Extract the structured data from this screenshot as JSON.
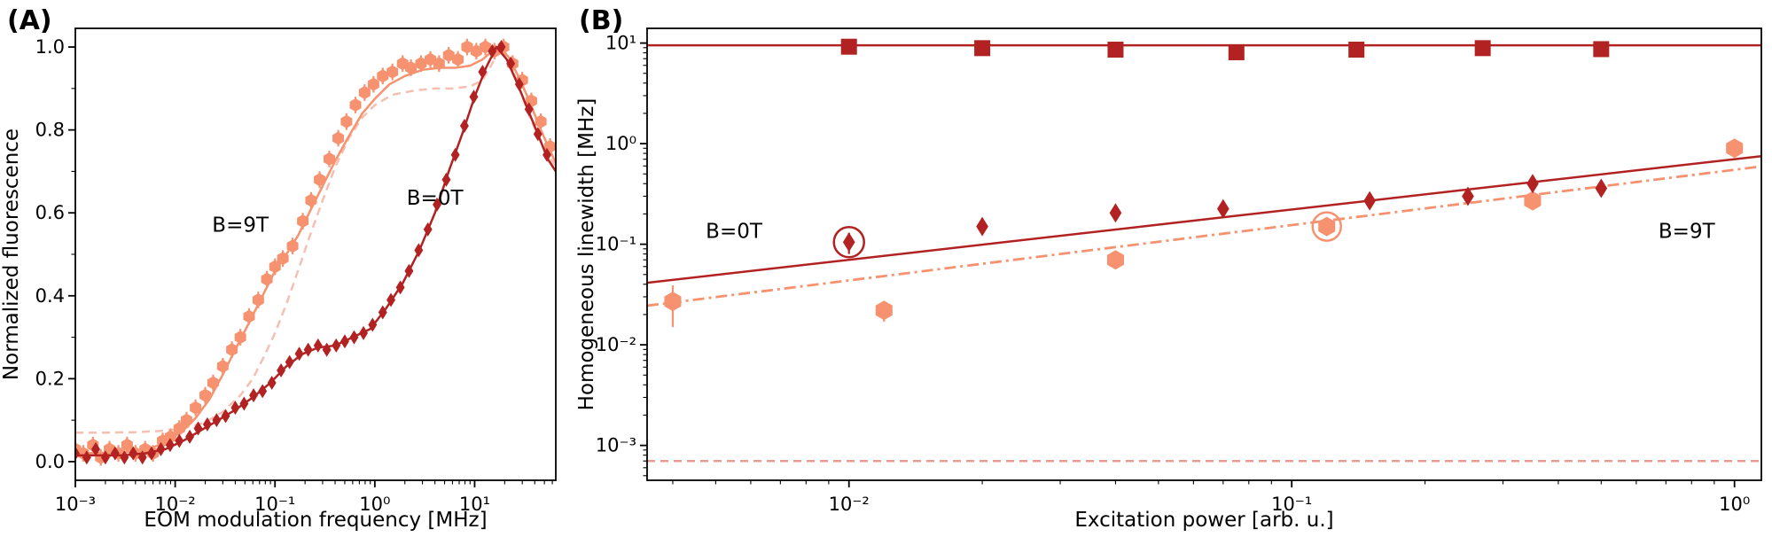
{
  "figure": {
    "panels": [
      {
        "label": "(A)"
      },
      {
        "label": "(B)"
      }
    ]
  },
  "colors": {
    "dark_red": "#B22222",
    "salmon": "#F6926F",
    "light_pink": "#F5BFB2",
    "floor_pink": "#E59C93"
  },
  "chart_data": [
    {
      "id": "panel-a",
      "type": "line",
      "xlabel": "EOM modulation frequency [MHz]",
      "ylabel": "Normalized fluorescence",
      "xscale": "log",
      "yscale": "linear",
      "xlim": [
        0.001,
        65
      ],
      "ylim": [
        -0.045,
        1.045
      ],
      "yticks": [
        0.0,
        0.2,
        0.4,
        0.6,
        0.8,
        1.0
      ],
      "yticks_minor": [
        0.1,
        0.3,
        0.5,
        0.7,
        0.9
      ],
      "annotations": [
        {
          "text": "B=9T",
          "x": 0.045,
          "y": 0.555,
          "color": "#F6926F"
        },
        {
          "text": "B=0T",
          "x": 4.0,
          "y": 0.62,
          "color": "#B22222"
        }
      ],
      "series": [
        {
          "name": "B9T-fit-dashed",
          "type": "line",
          "dash": "dashed",
          "width": 2.5,
          "color": "#F5BFB2",
          "x": [
            0.001,
            0.002,
            0.004,
            0.007,
            0.01,
            0.015,
            0.02,
            0.03,
            0.045,
            0.06,
            0.08,
            0.1,
            0.13,
            0.17,
            0.22,
            0.3,
            0.4,
            0.55,
            0.75,
            1.0,
            1.5,
            2.5,
            4,
            6,
            9,
            12,
            15,
            18,
            22,
            28,
            36,
            46,
            65
          ],
          "y": [
            0.07,
            0.07,
            0.071,
            0.074,
            0.078,
            0.086,
            0.095,
            0.12,
            0.16,
            0.2,
            0.26,
            0.31,
            0.38,
            0.46,
            0.54,
            0.63,
            0.71,
            0.78,
            0.83,
            0.86,
            0.885,
            0.895,
            0.9,
            0.9,
            0.905,
            0.92,
            0.96,
            1.0,
            0.97,
            0.9,
            0.83,
            0.77,
            0.71
          ]
        },
        {
          "name": "B9T-line",
          "type": "line",
          "dash": "solid",
          "width": 2.5,
          "color": "#F6926F",
          "x": [
            0.001,
            0.003,
            0.005,
            0.007,
            0.009,
            0.012,
            0.016,
            0.022,
            0.03,
            0.04,
            0.055,
            0.075,
            0.1,
            0.13,
            0.17,
            0.22,
            0.3,
            0.4,
            0.55,
            0.75,
            1.0,
            1.4,
            2.0,
            3.0,
            4.5,
            6.5,
            9,
            12,
            15,
            18,
            22,
            28,
            36,
            46,
            65
          ],
          "y": [
            0.02,
            0.022,
            0.028,
            0.04,
            0.055,
            0.075,
            0.105,
            0.15,
            0.21,
            0.27,
            0.335,
            0.4,
            0.46,
            0.5,
            0.545,
            0.6,
            0.665,
            0.725,
            0.785,
            0.84,
            0.875,
            0.91,
            0.93,
            0.945,
            0.95,
            0.95,
            0.955,
            0.97,
            0.99,
            1.0,
            0.975,
            0.925,
            0.865,
            0.8,
            0.72
          ]
        },
        {
          "name": "B9T-points",
          "type": "scatter",
          "marker": "hexagon",
          "size": 7.5,
          "color": "#F6926F",
          "yerr": 0.02,
          "x": [
            0.001,
            0.0012,
            0.0015,
            0.0018,
            0.0022,
            0.0027,
            0.0033,
            0.004,
            0.005,
            0.006,
            0.0075,
            0.009,
            0.011,
            0.013,
            0.016,
            0.02,
            0.024,
            0.03,
            0.037,
            0.045,
            0.055,
            0.068,
            0.083,
            0.1,
            0.12,
            0.15,
            0.19,
            0.23,
            0.28,
            0.35,
            0.43,
            0.52,
            0.64,
            0.79,
            0.97,
            1.2,
            1.5,
            1.9,
            2.3,
            2.9,
            3.6,
            4.4,
            5.5,
            6.8,
            8.4,
            10.4,
            12.8,
            15.8,
            19.5,
            24,
            30,
            37,
            46,
            57
          ],
          "y": [
            0.03,
            0.02,
            0.04,
            0.01,
            0.03,
            0.02,
            0.04,
            0.02,
            0.03,
            0.02,
            0.05,
            0.06,
            0.08,
            0.1,
            0.13,
            0.16,
            0.19,
            0.23,
            0.27,
            0.3,
            0.35,
            0.39,
            0.44,
            0.47,
            0.49,
            0.52,
            0.58,
            0.63,
            0.68,
            0.73,
            0.78,
            0.82,
            0.86,
            0.89,
            0.91,
            0.93,
            0.94,
            0.96,
            0.95,
            0.96,
            0.97,
            0.96,
            0.98,
            0.97,
            1.0,
            0.99,
            1.0,
            0.99,
            1.0,
            0.96,
            0.92,
            0.87,
            0.82,
            0.76
          ]
        },
        {
          "name": "B0T-line",
          "type": "line",
          "dash": "solid",
          "width": 2.5,
          "color": "#B22222",
          "x": [
            0.001,
            0.003,
            0.005,
            0.008,
            0.012,
            0.018,
            0.027,
            0.04,
            0.06,
            0.09,
            0.13,
            0.19,
            0.27,
            0.4,
            0.6,
            0.9,
            1.3,
            1.9,
            2.8,
            4.0,
            5.5,
            7.5,
            10,
            13,
            16.5,
            21,
            27,
            34,
            43,
            54,
            65
          ],
          "y": [
            0.015,
            0.015,
            0.02,
            0.03,
            0.05,
            0.075,
            0.1,
            0.125,
            0.155,
            0.19,
            0.23,
            0.26,
            0.275,
            0.28,
            0.3,
            0.32,
            0.37,
            0.43,
            0.51,
            0.6,
            0.7,
            0.79,
            0.88,
            0.95,
            1.0,
            0.97,
            0.91,
            0.85,
            0.79,
            0.73,
            0.7
          ]
        },
        {
          "name": "B0T-points",
          "type": "scatter",
          "marker": "diamond",
          "size": 8,
          "color": "#B22222",
          "yerr": 0.012,
          "x": [
            0.001,
            0.0013,
            0.0016,
            0.002,
            0.0025,
            0.0031,
            0.0038,
            0.0047,
            0.0058,
            0.0072,
            0.0089,
            0.011,
            0.014,
            0.017,
            0.021,
            0.026,
            0.032,
            0.04,
            0.049,
            0.061,
            0.075,
            0.093,
            0.115,
            0.14,
            0.175,
            0.215,
            0.27,
            0.33,
            0.41,
            0.5,
            0.62,
            0.77,
            0.95,
            1.2,
            1.45,
            1.8,
            2.2,
            2.75,
            3.4,
            4.2,
            5.2,
            6.4,
            7.9,
            9.8,
            12,
            15,
            18.5,
            23,
            28,
            35,
            43,
            53
          ],
          "y": [
            0.02,
            0.01,
            0.03,
            0.01,
            0.02,
            0.01,
            0.02,
            0.01,
            0.02,
            0.03,
            0.04,
            0.05,
            0.06,
            0.08,
            0.09,
            0.1,
            0.11,
            0.13,
            0.14,
            0.16,
            0.17,
            0.19,
            0.22,
            0.24,
            0.26,
            0.27,
            0.28,
            0.27,
            0.28,
            0.29,
            0.3,
            0.31,
            0.33,
            0.36,
            0.39,
            0.42,
            0.46,
            0.51,
            0.56,
            0.62,
            0.68,
            0.74,
            0.81,
            0.88,
            0.94,
            0.99,
            1.0,
            0.96,
            0.91,
            0.85,
            0.79,
            0.74
          ]
        }
      ]
    },
    {
      "id": "panel-b",
      "type": "scatter",
      "xlabel": "Excitation power [arb. u.]",
      "ylabel": "Homogeneous linewidth [MHz]",
      "xscale": "log",
      "yscale": "log",
      "xlim": [
        0.0035,
        1.15
      ],
      "ylim": [
        0.00045,
        14
      ],
      "annotations": [
        {
          "text": "B=0T",
          "x": 0.0055,
          "y": 0.115,
          "color": "#B22222"
        },
        {
          "text": "B=9T",
          "x": 0.78,
          "y": 0.115,
          "color": "#F6926F"
        }
      ],
      "series": [
        {
          "name": "lifetime-limit-dashed",
          "type": "line",
          "dash": "dashed",
          "width": 2.5,
          "color": "#E59C93",
          "x": [
            0.0035,
            1.15
          ],
          "y": [
            0.0007,
            0.0007
          ]
        },
        {
          "name": "B0T-squares-line",
          "type": "line",
          "dash": "solid",
          "width": 2.5,
          "color": "#B22222",
          "x": [
            0.0035,
            1.15
          ],
          "y": [
            9.5,
            9.5
          ]
        },
        {
          "name": "B0T-squares",
          "type": "scatter",
          "marker": "square",
          "size": 9,
          "color": "#B22222",
          "x": [
            0.01,
            0.02,
            0.04,
            0.075,
            0.14,
            0.27,
            0.5
          ],
          "y": [
            9.2,
            8.9,
            8.6,
            8.1,
            8.6,
            8.9,
            8.7
          ]
        },
        {
          "name": "B9T-fit-dashdot",
          "type": "line",
          "dash": "dashdot",
          "width": 2.8,
          "color": "#F6926F",
          "x": [
            0.0035,
            1.15
          ],
          "y": [
            0.0245,
            0.594
          ]
        },
        {
          "name": "B9T-hexagons",
          "type": "scatter",
          "marker": "hexagon",
          "size": 11,
          "color": "#F6926F",
          "yerr": [
            0.012,
            0.005,
            0.01,
            0.015,
            0.03,
            0.08
          ],
          "x": [
            0.004,
            0.012,
            0.04,
            0.12,
            0.35,
            1.0
          ],
          "y": [
            0.027,
            0.022,
            0.07,
            0.15,
            0.27,
            0.9
          ]
        },
        {
          "name": "B0T-fit-line",
          "type": "line",
          "dash": "solid",
          "width": 2.5,
          "color": "#B22222",
          "x": [
            0.0035,
            1.15
          ],
          "y": [
            0.0414,
            0.751
          ]
        },
        {
          "name": "B0T-diamonds",
          "type": "scatter",
          "marker": "diamond",
          "size": 11,
          "color": "#B22222",
          "yerr": [
            0.025,
            0.02,
            0.02,
            0.02,
            0.02,
            0.025,
            0.03,
            0.03
          ],
          "x": [
            0.01,
            0.02,
            0.04,
            0.07,
            0.15,
            0.25,
            0.35,
            0.5
          ],
          "y": [
            0.105,
            0.15,
            0.205,
            0.225,
            0.27,
            0.3,
            0.4,
            0.36
          ]
        }
      ],
      "circle_markers": [
        {
          "x": 0.01,
          "y": 0.105,
          "color": "#B22222",
          "r": 17
        },
        {
          "x": 0.12,
          "y": 0.15,
          "color": "#F6926F",
          "r": 16
        }
      ]
    }
  ]
}
